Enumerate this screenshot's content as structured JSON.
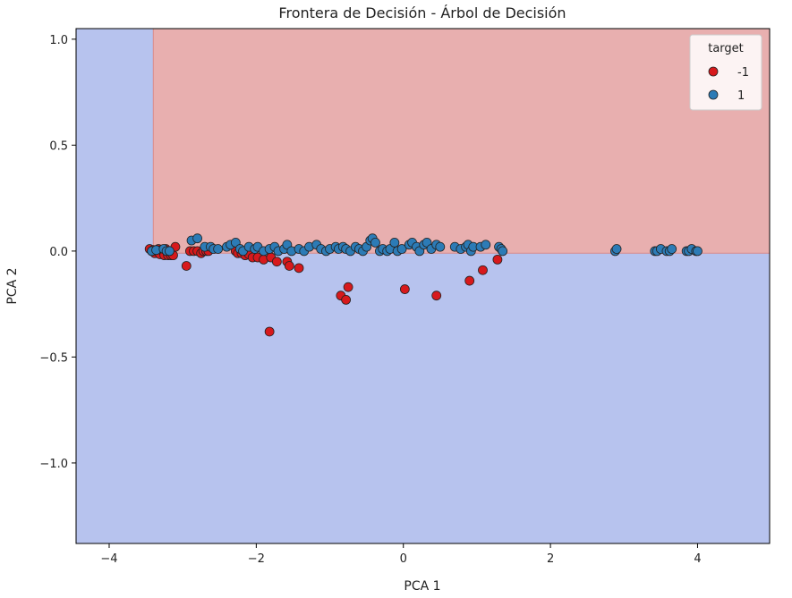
{
  "chart_data": {
    "type": "scatter",
    "title": "Frontera de Decisión - Árbol de Decisión",
    "xlabel": "PCA 1",
    "ylabel": "PCA 2",
    "xlim": [
      -4.45,
      4.98
    ],
    "ylim": [
      -1.38,
      1.05
    ],
    "xticks": [
      -4,
      -2,
      0,
      2,
      4
    ],
    "yticks": [
      1.0,
      0.5,
      0.0,
      -0.5,
      -1.0
    ],
    "xtick_labels": [
      "−4",
      "−2",
      "0",
      "2",
      "4"
    ],
    "ytick_labels": [
      "1.0",
      "0.5",
      "0.0",
      "−0.5",
      "−1.0"
    ],
    "grid": false,
    "decision_regions": [
      {
        "class": "-1",
        "color": "#e8afaf",
        "x_min": -3.4,
        "x_max": 4.98,
        "y_min": -0.01,
        "y_max": 1.05
      },
      {
        "class": "1",
        "color": "#b7c3ee",
        "x_min": -4.45,
        "x_max": 4.98,
        "y_min": -1.38,
        "y_max": 1.05
      }
    ],
    "legend": {
      "title": "target",
      "placement": "top-right",
      "entries": [
        {
          "label": "-1",
          "color": "#d7191c"
        },
        {
          "label": "1",
          "color": "#2c7bb6"
        }
      ]
    },
    "series": [
      {
        "class": "-1",
        "color": "#d7191c",
        "x": [
          -3.45,
          -3.42,
          -3.4,
          -3.38,
          -3.35,
          -3.33,
          -3.31,
          -3.29,
          -3.27,
          -3.25,
          -3.23,
          -3.21,
          -3.2,
          -3.18,
          -3.16,
          -3.13,
          -3.1,
          -2.95,
          -2.9,
          -2.85,
          -2.8,
          -2.75,
          -2.72,
          -2.68,
          -2.65,
          -2.28,
          -2.25,
          -2.2,
          -2.15,
          -2.1,
          -2.05,
          -1.98,
          -1.9,
          -1.8,
          -1.72,
          -1.58,
          -1.55,
          -1.42,
          -1.82,
          -0.85,
          -0.78,
          -0.75,
          0.02,
          0.45,
          0.9,
          1.08,
          1.28
        ],
        "y": [
          0.01,
          0.0,
          0.005,
          -0.01,
          0.0,
          0.01,
          -0.015,
          0.005,
          0.0,
          -0.02,
          0.01,
          -0.005,
          -0.02,
          0.0,
          -0.02,
          -0.02,
          0.02,
          -0.07,
          0.0,
          0.0,
          0.0,
          -0.01,
          0.0,
          0.0,
          0.0,
          0.0,
          -0.01,
          -0.01,
          -0.02,
          -0.015,
          -0.03,
          -0.03,
          -0.04,
          -0.03,
          -0.05,
          -0.05,
          -0.07,
          -0.08,
          -0.38,
          -0.21,
          -0.23,
          -0.17,
          -0.18,
          -0.21,
          -0.14,
          -0.09,
          -0.04
        ]
      },
      {
        "class": "1",
        "color": "#2c7bb6",
        "x": [
          -3.42,
          -3.36,
          -3.26,
          -3.22,
          -3.18,
          -2.88,
          -2.8,
          -2.7,
          -2.62,
          -2.58,
          -2.52,
          -2.4,
          -2.35,
          -2.28,
          -2.22,
          -2.18,
          -2.1,
          -2.02,
          -1.98,
          -1.9,
          -1.82,
          -1.75,
          -1.7,
          -1.62,
          -1.58,
          -1.52,
          -1.42,
          -1.35,
          -1.28,
          -1.18,
          -1.12,
          -1.05,
          -1.0,
          -0.92,
          -0.88,
          -0.82,
          -0.78,
          -0.72,
          -0.65,
          -0.6,
          -0.55,
          -0.5,
          -0.45,
          -0.42,
          -0.38,
          -0.32,
          -0.28,
          -0.22,
          -0.18,
          -0.12,
          -0.08,
          -0.02,
          0.08,
          0.12,
          0.18,
          0.22,
          0.28,
          0.32,
          0.38,
          0.45,
          0.5,
          0.7,
          0.78,
          0.85,
          0.88,
          0.92,
          0.95,
          1.05,
          1.12,
          1.3,
          1.33,
          1.35,
          2.88,
          2.9,
          3.42,
          3.45,
          3.5,
          3.58,
          3.62,
          3.65,
          3.85,
          3.88,
          3.92,
          3.98,
          4.0
        ],
        "y": [
          0.0,
          0.005,
          0.01,
          0.0,
          0.0,
          0.05,
          0.06,
          0.02,
          0.02,
          0.01,
          0.01,
          0.02,
          0.03,
          0.04,
          0.01,
          0.0,
          0.02,
          0.01,
          0.02,
          0.0,
          0.01,
          0.02,
          0.0,
          0.01,
          0.03,
          0.0,
          0.01,
          0.0,
          0.02,
          0.03,
          0.01,
          0.0,
          0.01,
          0.02,
          0.01,
          0.02,
          0.01,
          0.0,
          0.02,
          0.01,
          0.0,
          0.02,
          0.05,
          0.06,
          0.04,
          0.0,
          0.01,
          0.0,
          0.01,
          0.04,
          0.0,
          0.01,
          0.03,
          0.04,
          0.02,
          0.0,
          0.03,
          0.04,
          0.01,
          0.03,
          0.02,
          0.02,
          0.01,
          0.02,
          0.03,
          0.0,
          0.02,
          0.02,
          0.03,
          0.02,
          0.01,
          0.0,
          0.0,
          0.01,
          0.0,
          0.0,
          0.01,
          0.0,
          0.0,
          0.01,
          0.0,
          0.0,
          0.01,
          0.0,
          0.0
        ]
      }
    ]
  }
}
